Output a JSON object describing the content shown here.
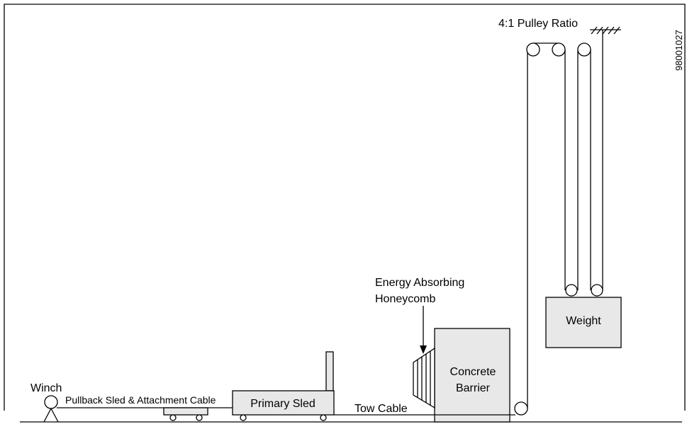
{
  "figure_id": "98001027",
  "labels": {
    "pulley_ratio": "4:1 Pulley Ratio",
    "honeycomb": [
      "Energy Absorbing",
      "Honeycomb"
    ],
    "weight": "Weight",
    "barrier": [
      "Concrete",
      "Barrier"
    ],
    "winch": "Winch",
    "pullback": "Pullback Sled & Attachment Cable",
    "primary_sled": "Primary Sled",
    "tow_cable": "Tow Cable"
  }
}
